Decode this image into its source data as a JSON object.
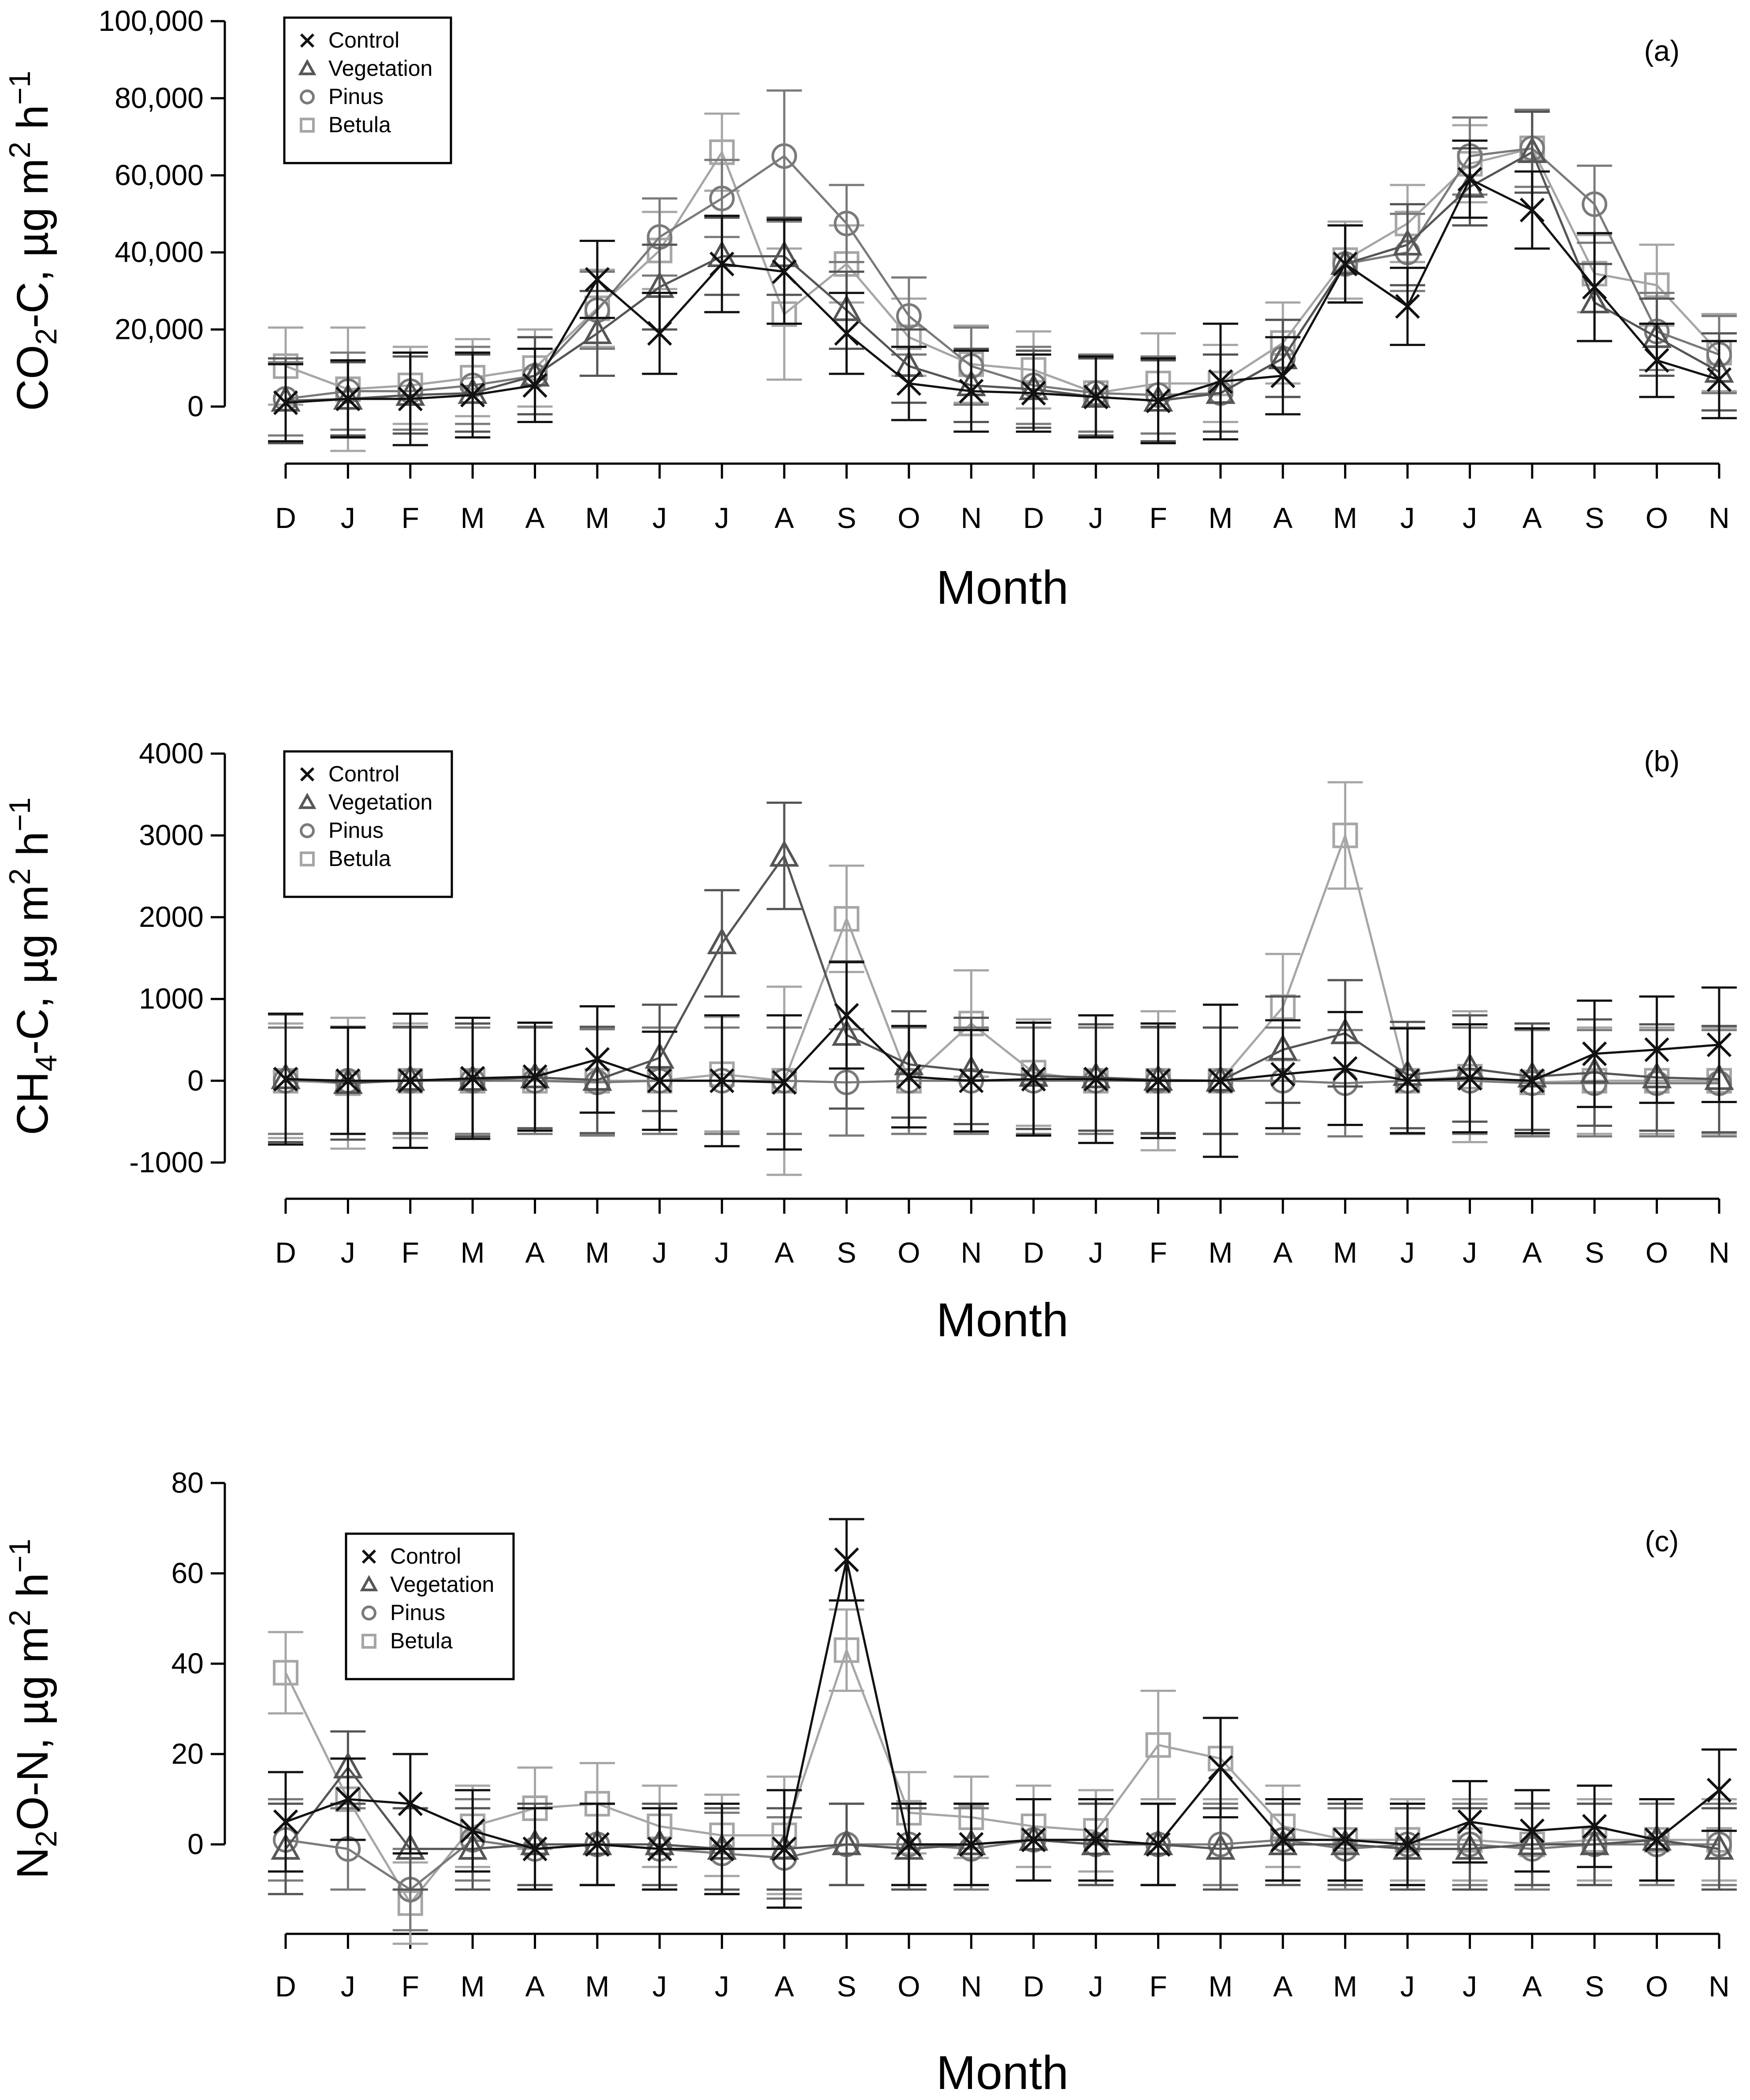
{
  "figure": {
    "x_tick_labels": [
      "D",
      "J",
      "F",
      "M",
      "A",
      "M",
      "J",
      "J",
      "A",
      "S",
      "O",
      "N",
      "D",
      "J",
      "F",
      "M",
      "A",
      "M",
      "J",
      "J",
      "A",
      "S",
      "O",
      "N"
    ],
    "series_styles": {
      "Control": {
        "color": "#111111",
        "marker": "x"
      },
      "Vegetation": {
        "color": "#555555",
        "marker": "triangle"
      },
      "Pinus": {
        "color": "#7a7a7a",
        "marker": "circle"
      },
      "Betula": {
        "color": "#a6a6a6",
        "marker": "square"
      }
    }
  },
  "chart_data": [
    {
      "type": "line",
      "panel_label": "(a)",
      "ylabel": "CO2-C, µg m2 h−1",
      "ylabel_parts": {
        "main": "CO",
        "sub": "2",
        "rest": "-C, µg  m",
        "sup1": "2",
        "mid": " h",
        "sup2": "−1"
      },
      "xlabel": "Month",
      "ylim": [
        -14000,
        100000
      ],
      "yticks": [
        0,
        20000,
        40000,
        60000,
        80000,
        100000
      ],
      "ytick_labels": [
        "0",
        "20,000",
        "40,000",
        "60,000",
        "80,000",
        "100,000"
      ],
      "legend": {
        "position": "top-left",
        "entries": [
          "Control",
          "Vegetation",
          "Pinus",
          "Betula"
        ]
      },
      "series": [
        {
          "name": "Control",
          "values": [
            1000,
            2000,
            2000,
            3000,
            5500,
            33000,
            19000,
            37000,
            35000,
            19000,
            6000,
            4000,
            3500,
            2500,
            1500,
            6500,
            8000,
            37000,
            26000,
            59000,
            51000,
            31000,
            12000,
            7000
          ],
          "err": [
            10000,
            10000,
            12000,
            11000,
            9500,
            10000,
            10500,
            12500,
            13500,
            10500,
            9500,
            10500,
            10000,
            10500,
            11000,
            15000,
            10000,
            10000,
            10000,
            10000,
            10000,
            14000,
            9500,
            10000
          ]
        },
        {
          "name": "Vegetation",
          "values": [
            1500,
            2000,
            3000,
            3500,
            8000,
            19000,
            31000,
            39000,
            39000,
            25000,
            10500,
            5500,
            4500,
            2500,
            1500,
            3500,
            12500,
            37000,
            42000,
            57000,
            66000,
            27000,
            18000,
            9000
          ],
          "err": [
            11000,
            9500,
            10000,
            10000,
            10000,
            11000,
            11000,
            10000,
            10000,
            10000,
            9500,
            9500,
            10000,
            10000,
            10500,
            10000,
            10000,
            10000,
            10500,
            10000,
            10500,
            10000,
            10000,
            10000
          ]
        },
        {
          "name": "Pinus",
          "values": [
            2000,
            4000,
            4000,
            5500,
            8000,
            25000,
            44000,
            54000,
            65000,
            47500,
            23500,
            10500,
            5500,
            3500,
            3000,
            3500,
            12500,
            37000,
            40000,
            65000,
            67000,
            52500,
            19500,
            13500
          ],
          "err": [
            9500,
            10000,
            10000,
            10000,
            10000,
            10000,
            10000,
            10000,
            17000,
            10000,
            10000,
            10000,
            10000,
            10000,
            10000,
            10000,
            10000,
            10000,
            10000,
            10000,
            10000,
            10000,
            10000,
            10000
          ]
        },
        {
          "name": "Betula",
          "values": [
            10500,
            4500,
            5500,
            7500,
            10000,
            25500,
            40500,
            66000,
            24000,
            37000,
            18000,
            11000,
            9500,
            3500,
            6000,
            6000,
            16500,
            38000,
            47500,
            63000,
            67000,
            34500,
            31500,
            14000
          ],
          "err": [
            10000,
            16000,
            10000,
            10000,
            10000,
            10000,
            10000,
            10000,
            17000,
            10000,
            10000,
            10000,
            10000,
            10000,
            13000,
            10000,
            10500,
            10000,
            10000,
            10000,
            10000,
            10000,
            10500,
            10000
          ]
        }
      ]
    },
    {
      "type": "line",
      "panel_label": "(b)",
      "ylabel": "CH4-C, µg m2 h−1",
      "ylabel_parts": {
        "main": "CH",
        "sub": "4",
        "rest": "-C, µg  m",
        "sup1": "2",
        "mid": " h",
        "sup2": "−1"
      },
      "xlabel": "Month",
      "ylim": [
        -1200,
        4000
      ],
      "yticks": [
        -1000,
        0,
        1000,
        2000,
        3000,
        4000
      ],
      "ytick_labels": [
        "-1000",
        "0",
        "1000",
        "2000",
        "3000",
        "4000"
      ],
      "legend": {
        "position": "top-left",
        "entries": [
          "Control",
          "Vegetation",
          "Pinus",
          "Betula"
        ]
      },
      "series": [
        {
          "name": "Control",
          "values": [
            20,
            0,
            0,
            30,
            50,
            260,
            0,
            0,
            -20,
            800,
            50,
            0,
            20,
            20,
            0,
            0,
            80,
            150,
            0,
            30,
            0,
            330,
            380,
            440
          ],
          "err": [
            800,
            650,
            820,
            740,
            660,
            650,
            600,
            800,
            820,
            650,
            620,
            620,
            690,
            780,
            700,
            930,
            660,
            690,
            640,
            660,
            640,
            650,
            650,
            700
          ]
        },
        {
          "name": "Vegetation",
          "values": [
            30,
            -30,
            10,
            10,
            40,
            10,
            280,
            1680,
            2750,
            560,
            200,
            120,
            60,
            40,
            10,
            0,
            380,
            580,
            70,
            150,
            50,
            100,
            40,
            20
          ],
          "err": [
            780,
            690,
            650,
            690,
            620,
            650,
            650,
            650,
            650,
            900,
            650,
            650,
            650,
            650,
            650,
            650,
            650,
            650,
            650,
            650,
            650,
            650,
            650,
            650
          ]
        },
        {
          "name": "Pinus",
          "values": [
            0,
            0,
            0,
            0,
            0,
            -20,
            0,
            0,
            0,
            -20,
            0,
            0,
            0,
            0,
            0,
            0,
            0,
            -30,
            0,
            0,
            -30,
            -30,
            -30,
            -30
          ],
          "err": [
            650,
            650,
            650,
            650,
            650,
            650,
            650,
            650,
            650,
            650,
            650,
            650,
            650,
            650,
            650,
            650,
            650,
            650,
            650,
            650,
            650,
            650,
            650,
            650
          ]
        },
        {
          "name": "Betula",
          "values": [
            0,
            -30,
            0,
            0,
            0,
            0,
            0,
            80,
            0,
            1980,
            0,
            700,
            100,
            0,
            0,
            0,
            900,
            3000,
            0,
            50,
            -20,
            0,
            0,
            0
          ],
          "err": [
            700,
            800,
            700,
            700,
            650,
            650,
            650,
            700,
            1150,
            650,
            650,
            650,
            650,
            650,
            850,
            650,
            650,
            650,
            650,
            800,
            650,
            650,
            650,
            650
          ]
        }
      ]
    },
    {
      "type": "line",
      "panel_label": "(c)",
      "ylabel": "N2O-N, µg m2 h−1",
      "ylabel_parts": {
        "main": "N",
        "sub": "2",
        "rest": "O-N, µg  m",
        "sup1": "2",
        "mid": " h",
        "sup2": "−1"
      },
      "xlabel": "Month",
      "ylim": [
        -20,
        80
      ],
      "yticks": [
        0,
        20,
        40,
        60,
        80
      ],
      "ytick_labels": [
        "0",
        "20",
        "40",
        "60",
        "80"
      ],
      "legend": {
        "position": "top-left",
        "entries": [
          "Control",
          "Vegetation",
          "Pinus",
          "Betula"
        ]
      },
      "series": [
        {
          "name": "Control",
          "values": [
            5,
            10,
            9,
            3,
            -1,
            0,
            -1,
            -1,
            -1,
            63,
            0,
            0,
            1,
            1,
            0,
            17,
            1,
            1,
            0,
            5,
            3,
            4,
            1,
            12
          ],
          "err": [
            11,
            9,
            11,
            9,
            9,
            9,
            9,
            10,
            13,
            9,
            9,
            9,
            9,
            9,
            9,
            11,
            9,
            9,
            9,
            9,
            9,
            9,
            9,
            9
          ]
        },
        {
          "name": "Vegetation",
          "values": [
            -1,
            17,
            -1,
            -1,
            0,
            0,
            0,
            -1,
            -1,
            0,
            -1,
            0,
            1,
            0,
            0,
            -1,
            0,
            0,
            -1,
            -1,
            0,
            0,
            1,
            -1
          ],
          "err": [
            10,
            8,
            9,
            9,
            9,
            9,
            9,
            9,
            9,
            9,
            9,
            9,
            9,
            9,
            9,
            9,
            9,
            9,
            9,
            9,
            9,
            9,
            9,
            9
          ]
        },
        {
          "name": "Pinus",
          "values": [
            1,
            -1,
            -10,
            1,
            -1,
            0,
            -1,
            -2,
            -3,
            0,
            0,
            -1,
            1,
            0,
            0,
            0,
            1,
            -1,
            0,
            0,
            -1,
            0,
            0,
            0
          ],
          "err": [
            9,
            9,
            9,
            9,
            9,
            9,
            9,
            9,
            9,
            9,
            9,
            9,
            9,
            9,
            9,
            9,
            9,
            9,
            9,
            9,
            9,
            9,
            9,
            9
          ]
        },
        {
          "name": "Betula",
          "values": [
            38,
            10,
            -13,
            4,
            8,
            9,
            4,
            2,
            2,
            43,
            7,
            6,
            4,
            3,
            22,
            19,
            4,
            1,
            1,
            1,
            0,
            1,
            1,
            1
          ],
          "err": [
            9,
            9,
            9,
            9,
            9,
            9,
            9,
            9,
            13,
            9,
            9,
            9,
            9,
            9,
            12,
            9,
            9,
            9,
            9,
            9,
            9,
            9,
            9,
            9
          ]
        }
      ]
    }
  ]
}
